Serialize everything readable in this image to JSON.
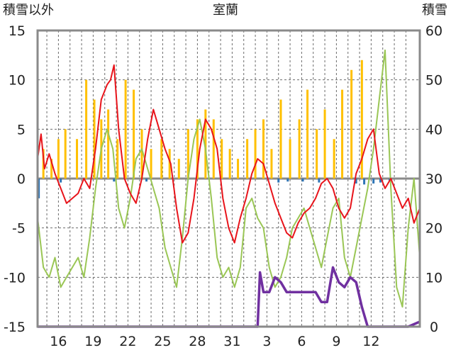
{
  "chart_data": {
    "type": "line",
    "title": "室蘭",
    "left_axis_label": "積雪以外",
    "right_axis_label": "積雪",
    "left_ylim": [
      -15,
      15
    ],
    "left_yticks": [
      "15",
      "10",
      "5",
      "0",
      "-5",
      "-10",
      "-15"
    ],
    "right_ylim": [
      0,
      60
    ],
    "right_yticks": [
      "60",
      "50",
      "40",
      "30",
      "20",
      "10",
      "0"
    ],
    "x_range_days": [
      0,
      33
    ],
    "x_ticks": [
      {
        "day": 1.8,
        "label": "16"
      },
      {
        "day": 4.8,
        "label": "19"
      },
      {
        "day": 7.8,
        "label": "22"
      },
      {
        "day": 10.8,
        "label": "25"
      },
      {
        "day": 13.8,
        "label": "28"
      },
      {
        "day": 16.8,
        "label": "31"
      },
      {
        "day": 19.8,
        "label": "3"
      },
      {
        "day": 22.8,
        "label": "6"
      },
      {
        "day": 25.8,
        "label": "9"
      },
      {
        "day": 28.8,
        "label": "12"
      }
    ],
    "grid": "horizontal dashed at major ticks, vertical dashed per day",
    "series": [
      {
        "name": "temperature",
        "color": "#e8141b",
        "axis": "left",
        "x": [
          0,
          0.3,
          0.6,
          1,
          1.5,
          2,
          2.5,
          3,
          3.5,
          4,
          4.5,
          5,
          5.5,
          6,
          6.3,
          6.6,
          7,
          7.5,
          8,
          8.5,
          9,
          9.5,
          10,
          10.5,
          11,
          11.5,
          12,
          12.5,
          13,
          13.5,
          14,
          14.5,
          15,
          15.5,
          16,
          16.5,
          17,
          17.5,
          18,
          18.5,
          19,
          19.5,
          20,
          20.5,
          21,
          21.5,
          22,
          22.5,
          23,
          23.5,
          24,
          24.5,
          25,
          25.5,
          26,
          26.5,
          27,
          27.5,
          28,
          28.5,
          29,
          29.5,
          30,
          30.5,
          31,
          31.5,
          32,
          32.5,
          33
        ],
        "values": [
          2,
          4.5,
          1,
          2.5,
          0.5,
          -1,
          -2.5,
          -2,
          -1.5,
          0,
          -1,
          3,
          8,
          9.5,
          10,
          11.5,
          5,
          0,
          -1.5,
          -2.5,
          0,
          4,
          7,
          5,
          3,
          1.5,
          -3,
          -6.5,
          -5.5,
          -2,
          3,
          6,
          5,
          3,
          -2,
          -5,
          -6.5,
          -4,
          -2,
          0.5,
          2,
          1.5,
          -0.5,
          -2.5,
          -4,
          -5.5,
          -6,
          -4.5,
          -3.5,
          -3,
          -2,
          -0.5,
          0,
          -1,
          -3,
          -4,
          -3,
          0.5,
          2,
          4,
          5,
          0.5,
          -1,
          0,
          -1.5,
          -3,
          -2,
          -4.5,
          -3
        ]
      },
      {
        "name": "precipitation-type-2",
        "color": "#9ac655",
        "axis": "left",
        "x": [
          0,
          0.5,
          1,
          1.5,
          2,
          2.5,
          3,
          3.5,
          4,
          4.5,
          5,
          5.5,
          6,
          6.5,
          7,
          7.5,
          8,
          8.5,
          9,
          9.5,
          10,
          10.5,
          11,
          11.5,
          12,
          12.5,
          13,
          13.5,
          14,
          14.5,
          15,
          15.5,
          16,
          16.5,
          17,
          17.5,
          18,
          18.5,
          19,
          19.5,
          20,
          20.5,
          21,
          21.5,
          22,
          22.5,
          23,
          23.5,
          24,
          24.5,
          25,
          25.5,
          26,
          26.5,
          27,
          27.5,
          28,
          28.5,
          29,
          29.5,
          30,
          30.5,
          31,
          31.5,
          32,
          32.5,
          33
        ],
        "values": [
          -4,
          -9,
          -10,
          -8,
          -11,
          -10,
          -9,
          -8,
          -10,
          -6,
          -1,
          3,
          5,
          3,
          -3,
          -5,
          -2,
          2,
          3,
          1,
          -1,
          -3,
          -7,
          -9,
          -11,
          -6,
          0,
          4,
          6,
          3,
          -2,
          -8,
          -10,
          -9,
          -11,
          -9,
          -3,
          -2,
          -4,
          -5,
          -9,
          -11,
          -10,
          -8,
          -5,
          -4,
          -3,
          -5,
          -7,
          -9,
          -6,
          -3,
          -2,
          -8,
          -10,
          -7,
          -4,
          -1,
          3,
          8,
          13,
          -1,
          -11,
          -13,
          -5,
          0,
          -8
        ]
      },
      {
        "name": "snow-depth",
        "color": "#7030a0",
        "axis": "right",
        "x": [
          0,
          19,
          19.2,
          19.5,
          20,
          20.5,
          21,
          21.5,
          22,
          23,
          24,
          24.5,
          25,
          25.5,
          26,
          26.5,
          27,
          27.5,
          28,
          28.5,
          29,
          29.5,
          30,
          31,
          32,
          33
        ],
        "values": [
          0,
          0,
          11,
          7,
          7,
          10,
          9,
          7,
          7,
          7,
          7,
          5,
          5,
          12,
          9,
          8,
          10,
          9,
          4,
          0,
          0,
          0,
          0,
          0,
          0,
          1
        ]
      },
      {
        "name": "bars-precip-orange",
        "color": "#ffc000",
        "axis": "left",
        "type": "bar",
        "x": [
          0.5,
          1.2,
          1.8,
          2.4,
          3.4,
          4.2,
          4.9,
          5.5,
          6.1,
          6.9,
          7.6,
          8.3,
          9.0,
          9.8,
          10.7,
          11.4,
          12.2,
          13.0,
          13.8,
          14.5,
          15.2,
          15.9,
          16.6,
          17.3,
          18.1,
          18.8,
          19.5,
          20.2,
          21.0,
          21.8,
          22.6,
          23.3,
          24.1,
          24.8,
          25.6,
          26.3,
          27.1,
          28.0
        ],
        "values": [
          3,
          2,
          4,
          5,
          4,
          10,
          8,
          6,
          7,
          4,
          10,
          9,
          5,
          3,
          4,
          3,
          2,
          5,
          6,
          7,
          6,
          4,
          3,
          2,
          4,
          5,
          6,
          3,
          8,
          4,
          6,
          9,
          5,
          7,
          4,
          9,
          11,
          12
        ]
      },
      {
        "name": "bars-precip-blue",
        "color": "#2e75b6",
        "axis": "left",
        "type": "bar",
        "x": [
          0.1,
          2.0,
          6.6,
          9.4,
          20.8,
          21.6,
          22.9,
          24.3,
          27.5,
          28.2,
          29.0,
          29.6,
          30.4
        ],
        "values": [
          -2,
          -0.4,
          -0.3,
          -0.3,
          -0.4,
          -0.3,
          -0.3,
          -0.4,
          -0.5,
          -0.6,
          -0.5,
          -0.4,
          -0.3
        ]
      }
    ]
  }
}
